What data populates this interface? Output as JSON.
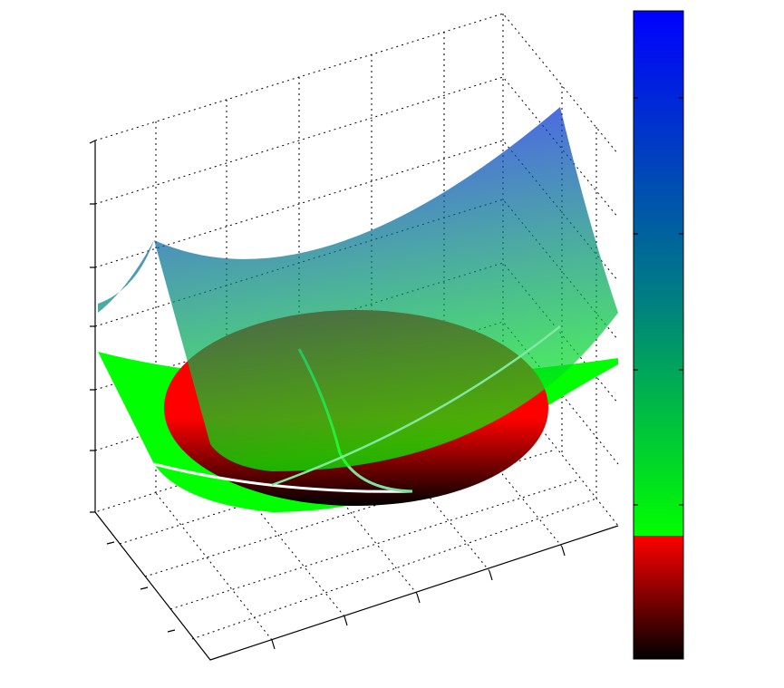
{
  "chart_data": {
    "type": "surface",
    "colors": [
      "#000000",
      "#ff0000",
      "#00ff00",
      "#008080",
      "#0000ff"
    ]
  }
}
